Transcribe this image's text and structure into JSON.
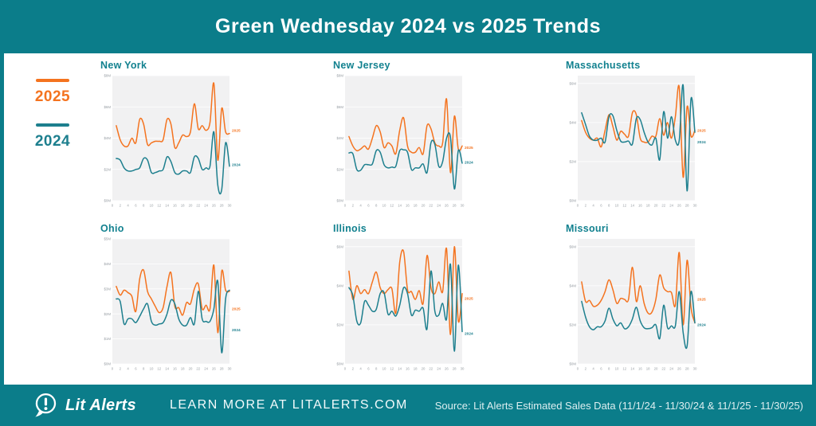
{
  "header": {
    "title": "Green Wednesday 2024 vs 2025 Trends"
  },
  "legend": {
    "items": [
      {
        "label": "2025",
        "color": "#f4731f"
      },
      {
        "label": "2024",
        "color": "#1d7f8e"
      }
    ]
  },
  "chart_data": [
    {
      "type": "line",
      "title": "New York",
      "x_range": [
        0,
        30
      ],
      "x_ticks": [
        0,
        2,
        4,
        6,
        8,
        10,
        12,
        14,
        16,
        18,
        20,
        22,
        24,
        26,
        28,
        30
      ],
      "y_ticks": [
        0,
        2,
        4,
        6,
        8
      ],
      "ylim": [
        0,
        8
      ],
      "unit": "$M",
      "series": [
        {
          "name": "2025",
          "color": "#f4731f",
          "label_y": 4.5,
          "values": [
            4.8,
            3.9,
            3.5,
            3.5,
            4.0,
            3.7,
            5.2,
            4.9,
            3.6,
            3.7,
            3.8,
            3.8,
            3.9,
            5.2,
            4.9,
            3.4,
            3.7,
            4.2,
            4.1,
            4.4,
            6.2,
            4.6,
            4.8,
            4.5,
            5.0,
            7.5,
            2.6,
            5.9,
            4.4,
            4.3
          ]
        },
        {
          "name": "2024",
          "color": "#1d7f8e",
          "label_y": 2.3,
          "values": [
            2.7,
            2.6,
            2.1,
            1.9,
            1.9,
            2.0,
            2.1,
            2.7,
            2.6,
            1.8,
            1.8,
            1.9,
            2.0,
            2.8,
            2.5,
            1.8,
            1.7,
            1.9,
            1.9,
            1.8,
            2.8,
            2.7,
            2.0,
            2.1,
            2.2,
            4.4,
            1.0,
            0.7,
            3.7,
            2.2
          ]
        }
      ]
    },
    {
      "type": "line",
      "title": "New Jersey",
      "x_range": [
        0,
        30
      ],
      "x_ticks": [
        0,
        2,
        4,
        6,
        8,
        10,
        12,
        14,
        16,
        18,
        20,
        22,
        24,
        26,
        28,
        30
      ],
      "y_ticks": [
        0,
        2,
        4,
        6,
        8
      ],
      "ylim": [
        0,
        8
      ],
      "unit": "$M",
      "series": [
        {
          "name": "2025",
          "color": "#f4731f",
          "label_y": 3.4,
          "values": [
            4.1,
            3.5,
            3.2,
            3.3,
            3.5,
            3.3,
            4.0,
            4.8,
            4.4,
            3.4,
            3.7,
            3.5,
            3.0,
            4.5,
            5.3,
            3.5,
            3.1,
            3.1,
            3.4,
            3.0,
            4.8,
            4.6,
            3.7,
            3.5,
            3.7,
            6.5,
            1.8,
            5.4,
            3.3,
            3.5
          ]
        },
        {
          "name": "2024",
          "color": "#1d7f8e",
          "label_y": 2.45,
          "values": [
            3.05,
            3.0,
            2.0,
            1.95,
            2.3,
            2.3,
            2.35,
            3.2,
            3.1,
            2.3,
            2.1,
            2.15,
            2.2,
            3.2,
            3.25,
            3.1,
            2.0,
            2.1,
            2.1,
            2.35,
            1.8,
            3.7,
            3.6,
            2.2,
            2.5,
            4.0,
            4.05,
            0.75,
            3.2,
            2.4
          ]
        }
      ]
    },
    {
      "type": "line",
      "title": "Massachusetts",
      "x_range": [
        0,
        30
      ],
      "x_ticks": [
        0,
        2,
        4,
        6,
        8,
        10,
        12,
        14,
        16,
        18,
        20,
        22,
        24,
        26,
        28,
        30
      ],
      "y_ticks": [
        0,
        2,
        4,
        6
      ],
      "ylim": [
        0,
        6.4
      ],
      "unit": "$M",
      "series": [
        {
          "name": "2025",
          "color": "#f4731f",
          "label_y": 3.6,
          "values": [
            4.1,
            3.5,
            3.2,
            3.1,
            3.2,
            2.75,
            3.6,
            4.4,
            3.8,
            3.1,
            3.55,
            3.4,
            3.3,
            4.5,
            4.4,
            3.2,
            3.0,
            3.0,
            3.3,
            3.3,
            4.2,
            3.35,
            4.0,
            3.2,
            4.3,
            5.8,
            1.2,
            4.8,
            3.3,
            3.6
          ]
        },
        {
          "name": "2024",
          "color": "#1d7f8e",
          "label_y": 3.0,
          "values": [
            4.5,
            3.9,
            3.3,
            3.1,
            3.1,
            3.2,
            3.0,
            4.3,
            4.35,
            3.6,
            3.05,
            3.0,
            3.05,
            2.9,
            4.2,
            4.15,
            3.5,
            3.0,
            2.85,
            3.2,
            2.1,
            4.55,
            3.2,
            4.3,
            3.1,
            3.1,
            5.9,
            0.5,
            5.2,
            3.5
          ]
        }
      ]
    },
    {
      "type": "line",
      "title": "Ohio",
      "x_range": [
        0,
        30
      ],
      "x_ticks": [
        0,
        2,
        4,
        6,
        8,
        10,
        12,
        14,
        16,
        18,
        20,
        22,
        24,
        26,
        28,
        30
      ],
      "y_ticks": [
        0,
        1,
        2,
        3,
        4,
        5
      ],
      "ylim": [
        0,
        5
      ],
      "unit": "$M",
      "series": [
        {
          "name": "2025",
          "color": "#f4731f",
          "label_y": 2.2,
          "values": [
            3.1,
            2.75,
            2.95,
            2.85,
            2.7,
            2.1,
            3.4,
            3.75,
            2.9,
            2.6,
            2.3,
            2.05,
            2.25,
            3.1,
            3.65,
            2.3,
            2.25,
            1.95,
            2.45,
            2.4,
            3.0,
            3.2,
            2.2,
            2.35,
            2.2,
            3.95,
            1.25,
            3.7,
            2.95,
            2.9
          ]
        },
        {
          "name": "2024",
          "color": "#1d7f8e",
          "label_y": 1.35,
          "values": [
            2.6,
            2.5,
            1.6,
            1.8,
            1.8,
            1.65,
            1.9,
            2.2,
            2.4,
            1.7,
            1.55,
            1.6,
            1.65,
            2.0,
            2.55,
            2.4,
            1.8,
            1.55,
            1.55,
            1.85,
            1.6,
            2.9,
            1.8,
            1.7,
            1.7,
            2.2,
            3.3,
            0.45,
            2.6,
            2.95
          ]
        }
      ]
    },
    {
      "type": "line",
      "title": "Illinois",
      "x_range": [
        0,
        30
      ],
      "x_ticks": [
        0,
        2,
        4,
        6,
        8,
        10,
        12,
        14,
        16,
        18,
        20,
        22,
        24,
        26,
        28,
        30
      ],
      "y_ticks": [
        0,
        2,
        4,
        6
      ],
      "ylim": [
        0,
        6.4
      ],
      "unit": "$M",
      "series": [
        {
          "name": "2025",
          "color": "#f4731f",
          "label_y": 3.35,
          "values": [
            4.75,
            3.3,
            4.0,
            3.6,
            3.8,
            3.6,
            4.2,
            4.7,
            3.9,
            3.6,
            3.8,
            3.85,
            2.6,
            5.2,
            5.75,
            3.8,
            3.7,
            3.3,
            3.75,
            3.1,
            5.55,
            3.9,
            3.6,
            4.2,
            3.7,
            5.9,
            1.5,
            6.0,
            2.2,
            3.6
          ]
        },
        {
          "name": "2024",
          "color": "#1d7f8e",
          "label_y": 1.55,
          "values": [
            3.9,
            3.5,
            2.2,
            2.1,
            3.2,
            3.0,
            2.7,
            2.8,
            3.6,
            3.65,
            2.55,
            2.7,
            2.45,
            3.0,
            3.9,
            3.6,
            2.5,
            2.75,
            2.7,
            2.85,
            1.8,
            4.75,
            2.7,
            2.5,
            3.1,
            2.3,
            5.1,
            0.65,
            5.05,
            1.65
          ]
        }
      ]
    },
    {
      "type": "line",
      "title": "Missouri",
      "x_range": [
        0,
        30
      ],
      "x_ticks": [
        0,
        2,
        4,
        6,
        8,
        10,
        12,
        14,
        16,
        18,
        20,
        22,
        24,
        26,
        28,
        30
      ],
      "y_ticks": [
        0,
        2,
        4,
        6
      ],
      "ylim": [
        0,
        6.4
      ],
      "unit": "$M",
      "series": [
        {
          "name": "2025",
          "color": "#f4731f",
          "label_y": 3.3,
          "values": [
            4.2,
            3.2,
            3.25,
            2.95,
            3.0,
            3.25,
            3.7,
            4.3,
            3.8,
            3.1,
            3.35,
            3.3,
            3.3,
            4.95,
            3.2,
            4.0,
            3.1,
            2.6,
            2.65,
            3.3,
            4.55,
            3.9,
            3.7,
            3.65,
            3.0,
            5.7,
            2.0,
            5.3,
            2.9,
            2.1
          ]
        },
        {
          "name": "2024",
          "color": "#1d7f8e",
          "label_y": 2.0,
          "values": [
            3.2,
            2.4,
            1.9,
            1.75,
            1.9,
            1.9,
            2.2,
            2.85,
            2.3,
            1.95,
            2.1,
            1.8,
            1.9,
            2.3,
            2.9,
            2.2,
            1.85,
            1.8,
            1.85,
            2.0,
            1.3,
            3.0,
            1.85,
            1.95,
            1.95,
            3.7,
            1.6,
            0.9,
            3.7,
            2.1
          ]
        }
      ]
    }
  ],
  "footer": {
    "brand": "Lit Alerts",
    "cta": "LEARN MORE AT LITALERTS.COM",
    "source": "Source: Lit Alerts Estimated Sales Data (11/1/24 - 11/30/24 & 11/1/25 - 11/30/25)"
  },
  "colors": {
    "teal_background": "#0b7d8a",
    "orange_series": "#f4731f",
    "teal_series": "#1d7f8e",
    "chart_title_teal": "#12818f",
    "plot_background": "#f1f1f2",
    "axis_text": "#9aa0a6"
  }
}
